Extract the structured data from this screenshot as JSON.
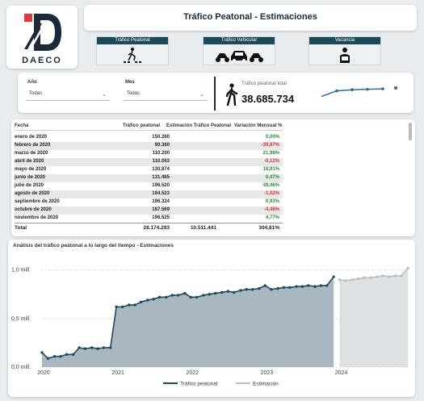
{
  "logo": {
    "text": "DAECO"
  },
  "header": {
    "title": "Tráfico Peatonal - Estimaciones"
  },
  "nav": [
    {
      "label": "Tráfico Peatonal",
      "icon": "pedestrian-crossing-icon"
    },
    {
      "label": "Tráfico Vehicular",
      "icon": "vehicles-icon"
    },
    {
      "label": "Vacancia",
      "icon": "vacancy-icon"
    }
  ],
  "filters": {
    "year": {
      "label": "Año",
      "value": "Todas"
    },
    "month": {
      "label": "Mes",
      "value": "Todas"
    }
  },
  "kpi": {
    "label": "Tráfico peatonal total",
    "value": "38.685.734",
    "icon": "walking-person-icon"
  },
  "sparkline": {
    "values": [
      0.3,
      0.55,
      0.6,
      0.62,
      0.64
    ],
    "dot": 0.68
  },
  "table": {
    "headers": [
      "Fecha",
      "Tráfico peatonal",
      "Estimación Tráfico Peatonal",
      "Variación Mensual %"
    ],
    "rows": [
      {
        "fecha": "enero de 2020",
        "trafico": "150.280",
        "estimacion": "",
        "variacion": "0,00%",
        "sign": "pos"
      },
      {
        "fecha": "febrero de 2020",
        "trafico": "90.360",
        "estimacion": "",
        "variacion": "-39,87%",
        "sign": "neg"
      },
      {
        "fecha": "marzo de 2020",
        "trafico": "110.200",
        "estimacion": "",
        "variacion": "21,96%",
        "sign": "pos"
      },
      {
        "fecha": "abril de 2020",
        "trafico": "110.063",
        "estimacion": "",
        "variacion": "-0,12%",
        "sign": "neg"
      },
      {
        "fecha": "mayo de 2020",
        "trafico": "130.874",
        "estimacion": "",
        "variacion": "18,91%",
        "sign": "pos"
      },
      {
        "fecha": "junio de 2020",
        "trafico": "131.485",
        "estimacion": "",
        "variacion": "0,47%",
        "sign": "pos"
      },
      {
        "fecha": "julio de 2020",
        "trafico": "196.520",
        "estimacion": "",
        "variacion": "49,46%",
        "sign": "pos"
      },
      {
        "fecha": "agosto de 2020",
        "trafico": "194.523",
        "estimacion": "",
        "variacion": "-1,02%",
        "sign": "neg"
      },
      {
        "fecha": "septiembre de 2020",
        "trafico": "196.324",
        "estimacion": "",
        "variacion": "0,93%",
        "sign": "pos"
      },
      {
        "fecha": "octubre de 2020",
        "trafico": "187.569",
        "estimacion": "",
        "variacion": "-4,46%",
        "sign": "neg"
      },
      {
        "fecha": "noviembre de 2020",
        "trafico": "196.525",
        "estimacion": "",
        "variacion": "4,77%",
        "sign": "pos"
      }
    ],
    "total": {
      "label": "Total",
      "trafico": "28.174.293",
      "estimacion": "10.511.441",
      "variacion": "304,81%"
    }
  },
  "chart_data": {
    "type": "area",
    "title": "Análisis del tráfico peatonal a lo largo del tiempo - Estimaciones",
    "x_ticks": [
      "2020",
      "2021",
      "2022",
      "2023",
      "2024"
    ],
    "y_ticks": [
      "0,0 mill.",
      "0,5 mill.",
      "1,0 mill."
    ],
    "ylim": [
      0,
      1.08
    ],
    "x_start": 2020.0,
    "series": [
      {
        "name": "Tráfico peatonal",
        "color": "#1f4a5c",
        "fill": "#a9b8c0",
        "points": [
          [
            2020.0,
            0.15
          ],
          [
            2020.08,
            0.09
          ],
          [
            2020.17,
            0.11
          ],
          [
            2020.25,
            0.11
          ],
          [
            2020.33,
            0.13
          ],
          [
            2020.42,
            0.13
          ],
          [
            2020.5,
            0.2
          ],
          [
            2020.58,
            0.19
          ],
          [
            2020.67,
            0.2
          ],
          [
            2020.75,
            0.19
          ],
          [
            2020.83,
            0.2
          ],
          [
            2020.92,
            0.2
          ],
          [
            2021.0,
            0.62
          ],
          [
            2021.08,
            0.62
          ],
          [
            2021.17,
            0.64
          ],
          [
            2021.25,
            0.64
          ],
          [
            2021.33,
            0.67
          ],
          [
            2021.42,
            0.69
          ],
          [
            2021.5,
            0.7
          ],
          [
            2021.58,
            0.72
          ],
          [
            2021.67,
            0.72
          ],
          [
            2021.75,
            0.74
          ],
          [
            2021.83,
            0.74
          ],
          [
            2021.92,
            0.76
          ],
          [
            2022.0,
            0.72
          ],
          [
            2022.08,
            0.72
          ],
          [
            2022.17,
            0.74
          ],
          [
            2022.25,
            0.75
          ],
          [
            2022.33,
            0.76
          ],
          [
            2022.42,
            0.77
          ],
          [
            2022.5,
            0.78
          ],
          [
            2022.58,
            0.77
          ],
          [
            2022.67,
            0.79
          ],
          [
            2022.75,
            0.8
          ],
          [
            2022.83,
            0.8
          ],
          [
            2022.92,
            0.81
          ],
          [
            2023.0,
            0.84
          ],
          [
            2023.08,
            0.8
          ],
          [
            2023.17,
            0.81
          ],
          [
            2023.25,
            0.82
          ],
          [
            2023.33,
            0.82
          ],
          [
            2023.42,
            0.83
          ],
          [
            2023.5,
            0.83
          ],
          [
            2023.58,
            0.84
          ],
          [
            2023.67,
            0.83
          ],
          [
            2023.75,
            0.84
          ],
          [
            2023.83,
            0.84
          ],
          [
            2023.92,
            0.93
          ]
        ]
      },
      {
        "name": "Estimación",
        "color": "#b8c0c6",
        "fill": "#dde1e4",
        "points": [
          [
            2024.0,
            0.9
          ],
          [
            2024.08,
            0.89
          ],
          [
            2024.17,
            0.9
          ],
          [
            2024.25,
            0.91
          ],
          [
            2024.33,
            0.92
          ],
          [
            2024.42,
            0.92
          ],
          [
            2024.5,
            0.93
          ],
          [
            2024.58,
            0.94
          ],
          [
            2024.67,
            0.93
          ],
          [
            2024.75,
            0.94
          ],
          [
            2024.83,
            0.94
          ],
          [
            2024.92,
            1.02
          ]
        ]
      }
    ],
    "legend_position": "bottom"
  }
}
